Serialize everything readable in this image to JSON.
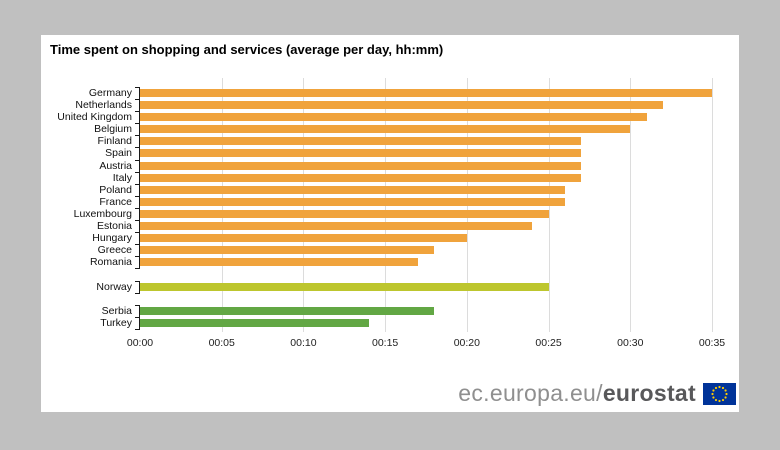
{
  "background_color": "#c0c0c0",
  "panel_color": "#ffffff",
  "footer": {
    "url_prefix": "ec.europa.eu/",
    "url_bold": "eurostat",
    "flag_icon": "eu-flag-icon",
    "flag_color": "#003399",
    "star_color": "#ffcc00"
  },
  "chart_data": {
    "type": "bar",
    "orientation": "horizontal",
    "title": "Time spent on shopping and services (average per day, hh:mm)",
    "xlabel": "",
    "ylabel": "",
    "x_tick_labels": [
      "00:00",
      "00:05",
      "00:10",
      "00:15",
      "00:20",
      "00:25",
      "00:30",
      "00:35"
    ],
    "x_range_minutes": [
      0,
      35
    ],
    "grid": "vertical light-gray lines every 5 minutes",
    "legend": "none",
    "categories": [
      "Germany",
      "Netherlands",
      "United Kingdom",
      "Belgium",
      "Finland",
      "Spain",
      "Austria",
      "Italy",
      "Poland",
      "France",
      "Luxembourg",
      "Estonia",
      "Hungary",
      "Greece",
      "Romania",
      "Norway",
      "Serbia",
      "Turkey"
    ],
    "values_hhmm": [
      "00:35",
      "00:32",
      "00:31",
      "00:30",
      "00:27",
      "00:27",
      "00:27",
      "00:27",
      "00:26",
      "00:26",
      "00:25",
      "00:24",
      "00:20",
      "00:18",
      "00:17",
      "00:25",
      "00:18",
      "00:14"
    ],
    "values_minutes": [
      35,
      32,
      31,
      30,
      27,
      27,
      27,
      27,
      26,
      26,
      25,
      24,
      20,
      18,
      17,
      25,
      18,
      14
    ],
    "groups": [
      "eu",
      "eu",
      "eu",
      "eu",
      "eu",
      "eu",
      "eu",
      "eu",
      "eu",
      "eu",
      "eu",
      "eu",
      "eu",
      "eu",
      "eu",
      "efta",
      "candidate",
      "candidate"
    ],
    "group_colors": {
      "eu": "#f0a33c",
      "efta": "#bdc62e",
      "candidate": "#62a744"
    },
    "gridline_color": "#dcdcdc",
    "axis_color": "#1a1a1a"
  }
}
